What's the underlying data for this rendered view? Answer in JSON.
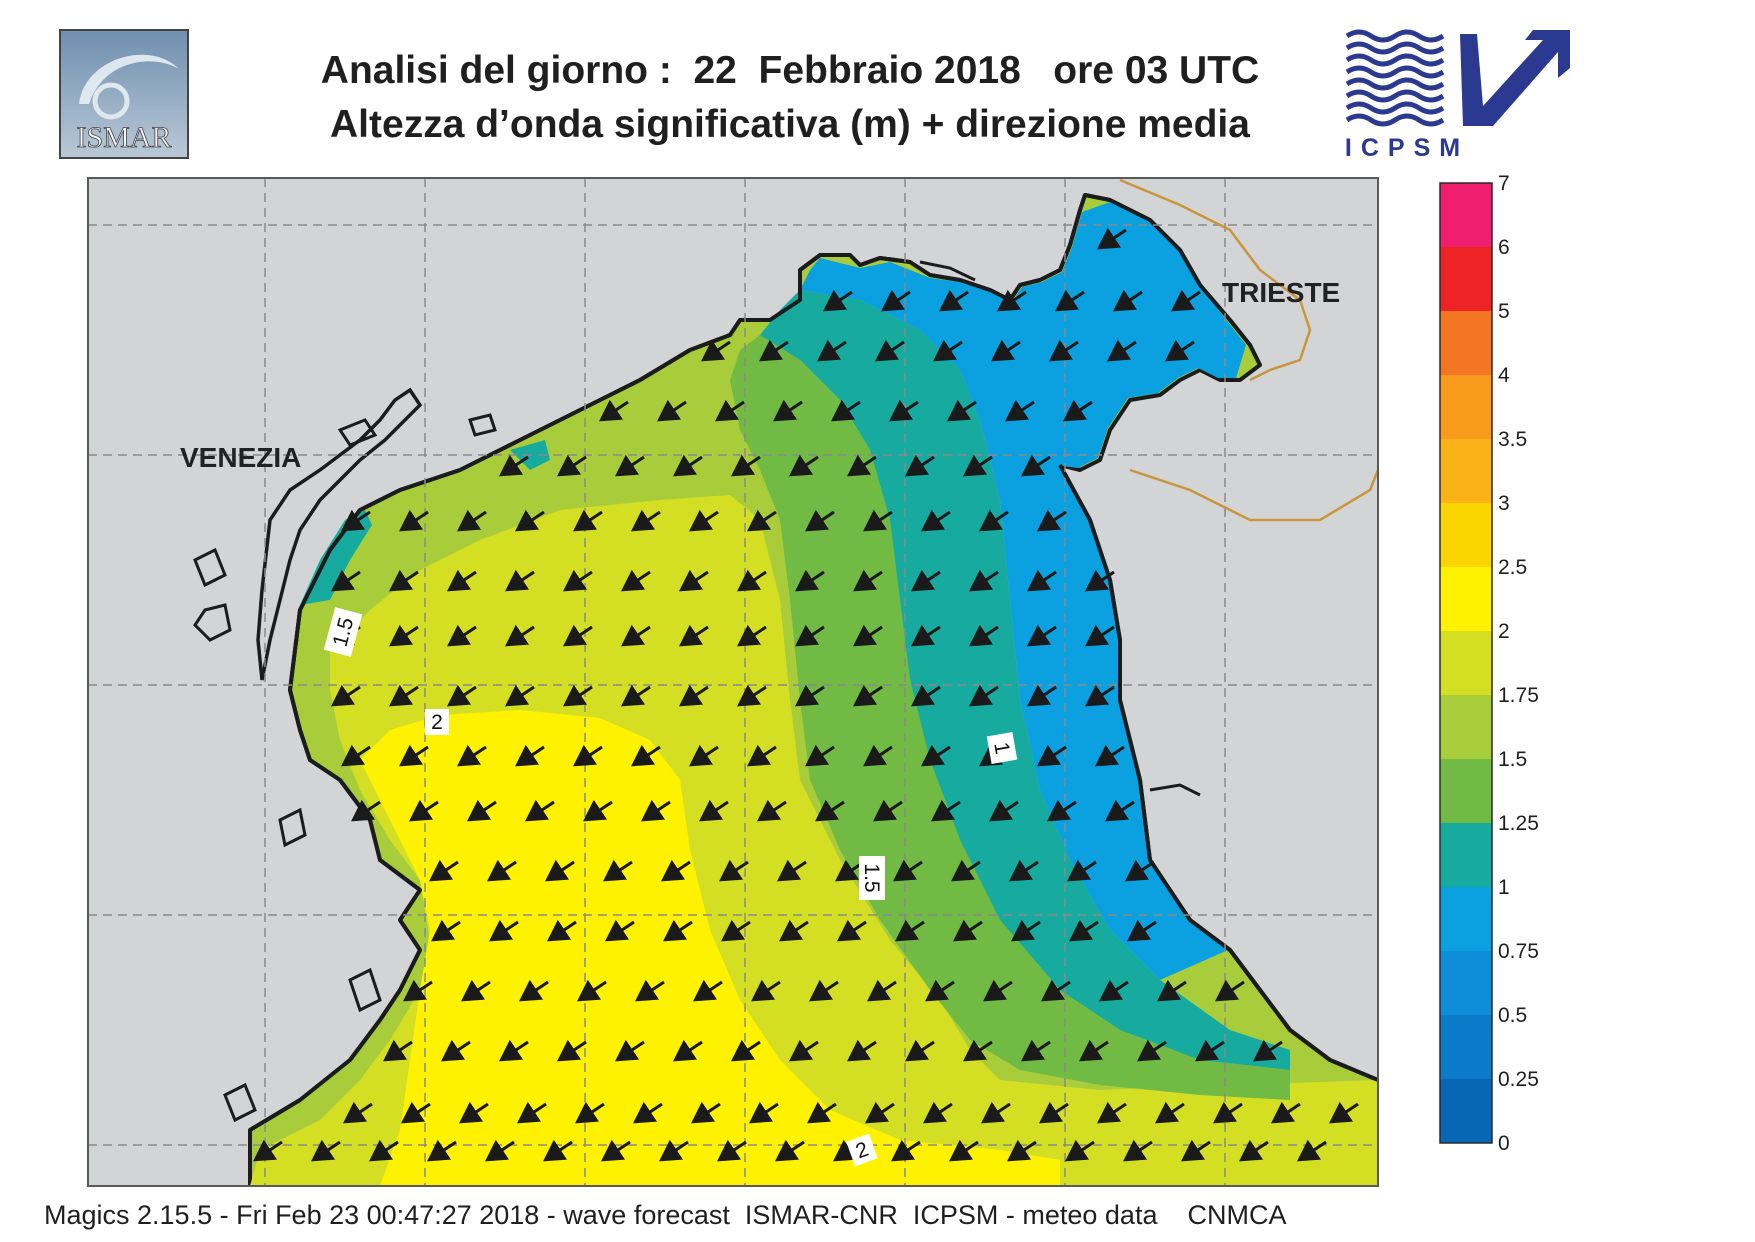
{
  "header": {
    "title_line1": "Analisi del giorno :  22  Febbraio 2018   ore 03 UTC",
    "title_line2": "Altezza d’onda significativa (m) + direzione media"
  },
  "logos": {
    "ismar_text": "ISMAR",
    "icpsm_text": "ICPSM"
  },
  "map": {
    "cities": [
      {
        "name": "VENEZIA"
      },
      {
        "name": "TRIESTE"
      }
    ],
    "contour_labels": [
      {
        "text": "1.5"
      },
      {
        "text": "2"
      },
      {
        "text": "1"
      },
      {
        "text": "1.5"
      },
      {
        "text": "2"
      }
    ],
    "wave_direction": "toward south-west (arrows pointing down-left)",
    "colors": {
      "land": "#d3d4d6",
      "coast": "#1c1c1c",
      "grid": "#8a8a8a",
      "border": "#c8963c",
      "arrow": "#1a1a1a"
    }
  },
  "colorbar": {
    "ticks": [
      "7",
      "6",
      "5",
      "4",
      "3.5",
      "3",
      "2.5",
      "2",
      "1.75",
      "1.5",
      "1.25",
      "1",
      "0.75",
      "0.5",
      "0.25",
      "0"
    ],
    "colors": [
      "#f01e6e",
      "#ee2326",
      "#f47624",
      "#f89a1c",
      "#f9b218",
      "#fbd500",
      "#fff200",
      "#d4df24",
      "#a9cd3a",
      "#71bb44",
      "#17ab9f",
      "#0ba0e0",
      "#0e8ed8",
      "#0b7ac8",
      "#0866b6"
    ]
  },
  "footer": {
    "text": "Magics 2.15.5 - Fri Feb 23 00:47:27 2018 - wave forecast  ISMAR-CNR  ICPSM - meteo data    CNMCA"
  }
}
